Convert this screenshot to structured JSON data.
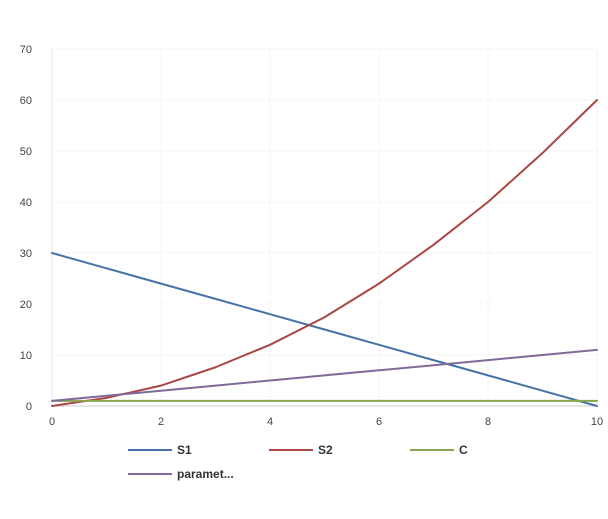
{
  "chart_data": {
    "type": "line",
    "title": "",
    "xlabel": "",
    "ylabel": "",
    "xlim": [
      0,
      10
    ],
    "ylim": [
      0,
      70
    ],
    "xticks": [
      0,
      2,
      4,
      6,
      8,
      10
    ],
    "yticks": [
      0,
      10,
      20,
      30,
      40,
      50,
      60,
      70
    ],
    "grid": true,
    "legend_position": "bottom",
    "x": [
      0,
      1,
      2,
      3,
      4,
      5,
      6,
      7,
      8,
      9,
      10
    ],
    "series": [
      {
        "name": "S1",
        "color": "#4572a7",
        "values": [
          30,
          27,
          24,
          21,
          18,
          15,
          12,
          9,
          6,
          3,
          0
        ]
      },
      {
        "name": "S2",
        "color": "#aa4643",
        "values": [
          0,
          1.6,
          4,
          7.6,
          12,
          17.4,
          24,
          31.6,
          40,
          49.6,
          60
        ]
      },
      {
        "name": "C",
        "color": "#89a54e",
        "values": [
          1,
          1,
          1,
          1,
          1,
          1,
          1,
          1,
          1,
          1,
          1
        ]
      },
      {
        "name": "paramet...",
        "color": "#80699b",
        "values": [
          1,
          2,
          3,
          4,
          5,
          6,
          7,
          8,
          9,
          10,
          11
        ]
      }
    ]
  }
}
